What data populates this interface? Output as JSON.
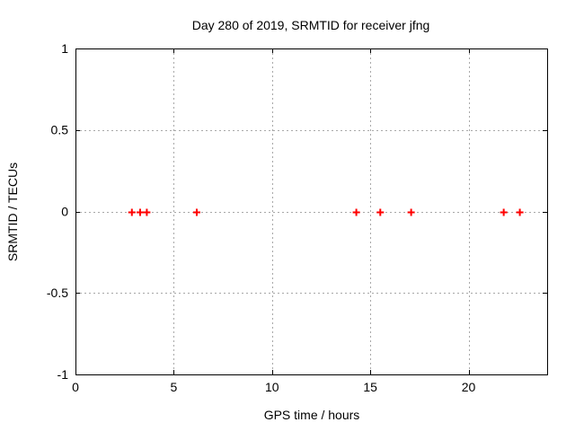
{
  "colors": {
    "background": "#ffffff",
    "axis": "#000000",
    "grid": "#a8a8a8",
    "marker": "#ff0000",
    "text": "#000000"
  },
  "chart_data": {
    "type": "scatter",
    "title": "Day 280 of 2019, SRMTID for receiver jfng",
    "xlabel": "GPS time / hours",
    "ylabel": "SRMTID / TECUs",
    "xlim": [
      0,
      24
    ],
    "ylim": [
      -1,
      1
    ],
    "xticks": [
      0,
      5,
      10,
      15,
      20
    ],
    "yticks": [
      -1,
      -0.5,
      0,
      0.5,
      1
    ],
    "grid": true,
    "grid_style": "dashed",
    "legend": "none",
    "series": [
      {
        "name": "SRMTID",
        "marker": "plus",
        "color": "#ff0000",
        "x": [
          2.87,
          3.29,
          3.63,
          6.17,
          14.29,
          15.51,
          17.08,
          21.79,
          22.61
        ],
        "y": [
          0,
          0,
          0,
          0,
          0,
          0,
          0,
          0,
          0
        ]
      }
    ]
  }
}
